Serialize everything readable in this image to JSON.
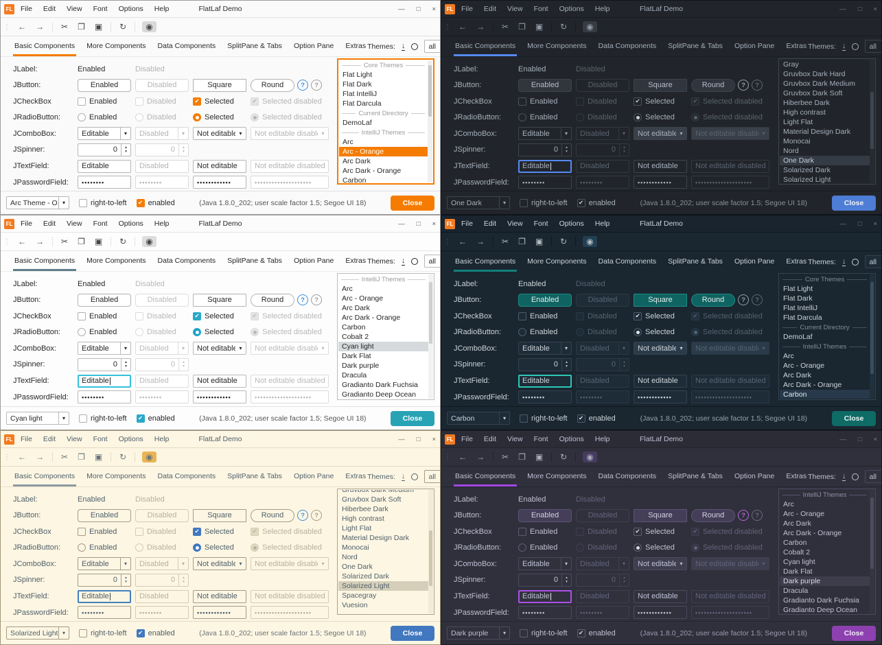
{
  "shared": {
    "window_title": "FlatLaf Demo",
    "menus": [
      "File",
      "Edit",
      "View",
      "Font",
      "Options",
      "Help"
    ],
    "window_controls": [
      {
        "name": "minimize",
        "glyph": "—"
      },
      {
        "name": "maximize",
        "glyph": "□"
      },
      {
        "name": "close",
        "glyph": "×"
      }
    ],
    "toolbar": [
      {
        "type": "btn",
        "name": "back",
        "glyph": "←"
      },
      {
        "type": "btn",
        "name": "forward",
        "glyph": "→"
      },
      {
        "type": "sep"
      },
      {
        "type": "btn",
        "name": "cut",
        "glyph": "✂"
      },
      {
        "type": "btn",
        "name": "copy",
        "glyph": "❐"
      },
      {
        "type": "btn",
        "name": "paste",
        "glyph": "▣"
      },
      {
        "type": "sep"
      },
      {
        "type": "btn",
        "name": "refresh",
        "glyph": "↻"
      },
      {
        "type": "sep"
      },
      {
        "type": "btn",
        "name": "show-hidden-eye",
        "glyph": "◉",
        "toggled": true
      }
    ],
    "tabs": [
      "Basic Components",
      "More Components",
      "Data Components",
      "SplitPane & Tabs",
      "Option Pane",
      "Extras"
    ],
    "themes_label": "Themes:",
    "filter_value": "all",
    "icons": {
      "check": "✔",
      "combo_arrow": "▾",
      "spin_up": "▴",
      "spin_down": "▾",
      "download": "↓"
    },
    "form": {
      "labels": {
        "jlabel": "JLabel:",
        "jbutton": "JButton:",
        "jcheckbox": "JCheckBox",
        "jradiobutton": "JRadioButton:",
        "jcombobox": "JComboBox:",
        "jspinner": "JSpinner:",
        "jtextfield": "JTextField:",
        "jpasswordfield": "JPasswordField:"
      },
      "jlabel": {
        "enabled": "Enabled",
        "disabled": "Disabled"
      },
      "jbutton": {
        "enabled": "Enabled",
        "disabled": "Disabled",
        "square": "Square",
        "round": "Round",
        "help": "?"
      },
      "jcheckbox": {
        "enabled": "Enabled",
        "disabled": "Disabled",
        "selected": "Selected",
        "selected_disabled": "Selected disabled"
      },
      "jradiobutton": {
        "enabled": "Enabled",
        "disabled": "Disabled",
        "selected": "Selected",
        "selected_disabled": "Selected disabled"
      },
      "jcombobox": {
        "editable": "Editable",
        "disabled": "Disabled",
        "not_editable": "Not editable",
        "not_editable_disabled": "Not editable disabled"
      },
      "jspinner": {
        "value": "0",
        "value_disabled": "0"
      },
      "jtextfield": {
        "editable": "Editable",
        "disabled": "Disabled",
        "not_editable": "Not editable",
        "not_editable_disabled": "Not editable disabled"
      },
      "jpasswordfield": {
        "v1": "••••••••",
        "v2": "••••••••",
        "v3": "••••••••••••",
        "v4": "••••••••••••••••••••"
      }
    },
    "bottom": {
      "rtl_label": "right-to-left",
      "enabled_label": "enabled",
      "info": "(Java 1.8.0_202;  user scale factor 1.5; Segoe UI 18)",
      "close_label": "Close"
    }
  },
  "panels": [
    {
      "theme_name": "Arc - Orange",
      "selector_value": "Arc Theme - O...",
      "state": {
        "textfield_focused": false,
        "caret": false,
        "list_focused": true,
        "scroll_top": "4%",
        "scroll_height": "42%"
      },
      "colors": {
        "frame": "#9d9d9d",
        "titlebar": "#fafafa",
        "bg": "#fafafa",
        "text": "#2b2b2b",
        "muted": "#b4b4b4",
        "toolbar_border": "#e2e2e2",
        "tabs_border": "#e8e8e8",
        "eye_bg": "#d4d4d4",
        "winbtn": "#555555",
        "accent": "#f57c00",
        "tab_underline": "#f57c00",
        "btn_bg": "#ffffff",
        "btn_border": "#b0b0b0",
        "btn_text": "#2b2b2b",
        "field_bg": "#ffffff",
        "field_border": "#b6b6b6",
        "field_border_dis": "#dadada",
        "ne_bg": "#ffffff",
        "check_fill": "#f57c00",
        "check_border": "#f57c00",
        "check_mark": "#ffffff",
        "box_border": "#b0b0b0",
        "dis_fill": "#e4e4e4",
        "radio_fill": "#f57c00",
        "radio_dot": "#ffffff",
        "focus": "#f57c00",
        "caret": "#333333",
        "list_bg": "#ffffff",
        "list_border": "#f57c00",
        "sel_bg": "#f57c00",
        "sel_text": "#ffffff",
        "sep_text": "#9b9b9b",
        "sep_line": "#c9c9c9",
        "close_bg": "#f57c00",
        "close_text": "#ffffff",
        "help1": "#3c8fd9",
        "help2": "#9e9e9e",
        "scroll_track": "#f0f0f0",
        "scroll_thumb": "#c8c8c8",
        "info_text": "#555555"
      },
      "themes_list": [
        {
          "type": "separator",
          "label": "Core Themes"
        },
        {
          "type": "item",
          "label": "Flat Light"
        },
        {
          "type": "item",
          "label": "Flat Dark"
        },
        {
          "type": "item",
          "label": "Flat IntelliJ"
        },
        {
          "type": "item",
          "label": "Flat Darcula"
        },
        {
          "type": "separator",
          "label": "Current Directory"
        },
        {
          "type": "item",
          "label": "DemoLaf"
        },
        {
          "type": "separator",
          "label": "IntelliJ Themes"
        },
        {
          "type": "item",
          "label": "Arc"
        },
        {
          "type": "item",
          "label": "Arc - Orange",
          "selected": true
        },
        {
          "type": "item",
          "label": "Arc Dark"
        },
        {
          "type": "item",
          "label": "Arc Dark - Orange"
        },
        {
          "type": "item",
          "label": "Carbon"
        }
      ]
    },
    {
      "theme_name": "One Dark",
      "selector_value": "One Dark",
      "state": {
        "textfield_focused": true,
        "caret": true,
        "list_focused": false,
        "scroll_top": "26%",
        "scroll_height": "46%"
      },
      "colors": {
        "frame": "#11141a",
        "titlebar": "#21252b",
        "bg": "#21252b",
        "text": "#a6aeba",
        "muted": "#5a626e",
        "toolbar_border": "#181b20",
        "tabs_border": "#1a1e25",
        "eye_bg": "#3b4048",
        "winbtn": "#707885",
        "accent": "#568af2",
        "tab_underline": "#568af2",
        "btn_bg": "#30353e",
        "btn_border": "#3d434e",
        "btn_text": "#b6bdc9",
        "field_bg": "#21252b",
        "field_border": "#3d434e",
        "field_border_dis": "#32383f",
        "ne_bg": "#3a4049",
        "check_fill": "#21252b",
        "check_border": "#4b5260",
        "check_mark": "#c9cfd8",
        "box_border": "#4b5260",
        "dis_fill": "#262b31",
        "radio_fill": "#21252b",
        "radio_dot": "#c9cfd8",
        "focus": "#568af2",
        "caret": "#dcdfe4",
        "list_bg": "#21252b",
        "list_border": "#3d434e",
        "sel_bg": "#353b45",
        "sel_text": "#c8cdd5",
        "sep_text": "#7a828e",
        "sep_line": "#4a515c",
        "close_bg": "#4d7dd6",
        "close_text": "#f0f2f5",
        "help1": "#9aa2ad",
        "help2": "#5f6773",
        "scroll_track": "#262b32",
        "scroll_thumb": "#3f4550",
        "info_text": "#8a919c"
      },
      "themes_list": [
        {
          "type": "item",
          "label": "Gray"
        },
        {
          "type": "item",
          "label": "Gruvbox Dark Hard"
        },
        {
          "type": "item",
          "label": "Gruvbox Dark Medium"
        },
        {
          "type": "item",
          "label": "Gruvbox Dark Soft"
        },
        {
          "type": "item",
          "label": "Hiberbee Dark"
        },
        {
          "type": "item",
          "label": "High contrast"
        },
        {
          "type": "item",
          "label": "Light Flat"
        },
        {
          "type": "item",
          "label": "Material Design Dark"
        },
        {
          "type": "item",
          "label": "Monocai"
        },
        {
          "type": "item",
          "label": "Nord"
        },
        {
          "type": "item",
          "label": "One Dark",
          "selected": true
        },
        {
          "type": "item",
          "label": "Solarized Dark"
        },
        {
          "type": "item",
          "label": "Solarized Light"
        }
      ]
    },
    {
      "theme_name": "Cyan light",
      "selector_value": "Cyan light",
      "state": {
        "textfield_focused": true,
        "caret": true,
        "list_focused": false,
        "scroll_top": "6%",
        "scroll_height": "50%"
      },
      "colors": {
        "frame": "#9d9d9d",
        "titlebar": "#fcfcfc",
        "bg": "#fdfdfd",
        "text": "#262626",
        "muted": "#b9b9b9",
        "toolbar_border": "#e4e4e4",
        "tabs_border": "#ececec",
        "eye_bg": "#d8d8d8",
        "winbtn": "#555555",
        "accent": "#1fa7c4",
        "tab_underline": "#5f7d89",
        "btn_bg": "#ffffff",
        "btn_border": "#b4b4b4",
        "btn_text": "#262626",
        "field_bg": "#ffffff",
        "field_border": "#b9b9b9",
        "field_border_dis": "#dcdcdc",
        "ne_bg": "#ffffff",
        "check_fill": "#29a8ca",
        "check_border": "#29a8ca",
        "check_mark": "#ffffff",
        "box_border": "#b0b0b0",
        "dis_fill": "#e4e4e4",
        "radio_fill": "#19a3c9",
        "radio_dot": "#ffffff",
        "focus": "#35c1dc",
        "caret": "#222222",
        "list_bg": "#ffffff",
        "list_border": "#bcbcbc",
        "sel_bg": "#d7dadc",
        "sel_text": "#222222",
        "sep_text": "#9b9b9b",
        "sep_line": "#cfcfcf",
        "close_bg": "#28a3b5",
        "close_text": "#ffffff",
        "help1": "#3c8fd9",
        "help2": "#9e9e9e",
        "scroll_track": "#f2f2f2",
        "scroll_thumb": "#cfcfcf",
        "info_text": "#555555"
      },
      "themes_list": [
        {
          "type": "separator",
          "label": "IntelliJ Themes"
        },
        {
          "type": "item",
          "label": "Arc"
        },
        {
          "type": "item",
          "label": "Arc - Orange"
        },
        {
          "type": "item",
          "label": "Arc Dark"
        },
        {
          "type": "item",
          "label": "Arc Dark - Orange"
        },
        {
          "type": "item",
          "label": "Carbon"
        },
        {
          "type": "item",
          "label": "Cobalt 2"
        },
        {
          "type": "item",
          "label": "Cyan light",
          "selected": true
        },
        {
          "type": "item",
          "label": "Dark Flat"
        },
        {
          "type": "item",
          "label": "Dark purple"
        },
        {
          "type": "item",
          "label": "Dracula"
        },
        {
          "type": "item",
          "label": "Gradianto Dark Fuchsia"
        },
        {
          "type": "item",
          "label": "Gradianto Deep Ocean"
        }
      ]
    },
    {
      "theme_name": "Carbon",
      "selector_value": "Carbon",
      "state": {
        "textfield_focused": true,
        "caret": false,
        "list_focused": false,
        "scroll_top": "6%",
        "scroll_height": "74%"
      },
      "colors": {
        "frame": "#0c1218",
        "titlebar": "#19242e",
        "bg": "#1a2630",
        "text": "#ccd4d9",
        "muted": "#546470",
        "toolbar_border": "#101920",
        "tabs_border": "#11ial1b24",
        "eye_bg": "#24455a",
        "winbtn": "#6f8290",
        "accent": "#18a099",
        "tab_underline": "#128079",
        "btn_bg": "#0f6360",
        "btn_border": "#1d8d85",
        "btn_text": "#e6eef0",
        "field_bg": "#1e2c38",
        "field_border": "#33434f",
        "field_border_dis": "#2a3944",
        "ne_bg": "#2b3b49",
        "check_fill": "#1e2c38",
        "check_border": "#4d5d6b",
        "check_mark": "#dfe7eb",
        "box_border": "#4d5d6b",
        "dis_fill": "#22313d",
        "radio_fill": "#1e2c38",
        "radio_dot": "#dfe7eb",
        "focus": "#2ec7b6",
        "caret": "#e8f0f2",
        "list_bg": "#1a2630",
        "list_border": "#33434f",
        "sel_bg": "#27394a",
        "sel_text": "#dfe7eb",
        "sep_text": "#7e8f9b",
        "sep_line": "#42525f",
        "close_bg": "#0e6b66",
        "close_text": "#eef5f5",
        "help1": "#8fa2ad",
        "help2": "#5a6a76",
        "scroll_track": "#20303c",
        "scroll_thumb": "#3a4d5c",
        "info_text": "#93a3ad"
      },
      "themes_list": [
        {
          "type": "separator",
          "label": "Core Themes"
        },
        {
          "type": "item",
          "label": "Flat Light"
        },
        {
          "type": "item",
          "label": "Flat Dark"
        },
        {
          "type": "item",
          "label": "Flat IntelliJ"
        },
        {
          "type": "item",
          "label": "Flat Darcula"
        },
        {
          "type": "separator",
          "label": "Current Directory"
        },
        {
          "type": "item",
          "label": "DemoLaf"
        },
        {
          "type": "separator",
          "label": "IntelliJ Themes"
        },
        {
          "type": "item",
          "label": "Arc"
        },
        {
          "type": "item",
          "label": "Arc - Orange"
        },
        {
          "type": "item",
          "label": "Arc Dark"
        },
        {
          "type": "item",
          "label": "Arc Dark - Orange"
        },
        {
          "type": "item",
          "label": "Carbon",
          "selected": true
        }
      ]
    },
    {
      "theme_name": "Solarized Light",
      "selector_value": "Solarized Light",
      "state": {
        "textfield_focused": true,
        "caret": true,
        "list_focused": false,
        "scroll_top": "33%",
        "scroll_height": "45%",
        "clip_first": true
      },
      "colors": {
        "frame": "#a09878",
        "titlebar": "#fdf6e3",
        "bg": "#fdf6e3",
        "text": "#50606a",
        "muted": "#b9b19b",
        "toolbar_border": "#e4dcc6",
        "tabs_border": "#eae2cc",
        "eye_bg": "#e7a93e",
        "winbtn": "#6a6a5a",
        "accent": "#4480c0",
        "tab_underline": "#8a9aa0",
        "btn_bg": "#fdf6e3",
        "btn_border": "#a49c84",
        "btn_text": "#50606a",
        "field_bg": "#fdf6e3",
        "field_border": "#a49c84",
        "field_border_dis": "#d4ccb4",
        "ne_bg": "#fdf6e3",
        "check_fill": "#4178bf",
        "check_border": "#4178bf",
        "check_mark": "#ffffff",
        "box_border": "#a49c84",
        "dis_fill": "#e0d8c0",
        "radio_fill": "#4178bf",
        "radio_dot": "#ffffff",
        "focus": "#4480c0",
        "caret": "#444444",
        "list_bg": "#fdf6e3",
        "list_border": "#aaa28a",
        "sel_bg": "#d5cfba",
        "sel_text": "#50606a",
        "sep_text": "#a49c84",
        "sep_line": "#c4bca4",
        "close_bg": "#4178bf",
        "close_text": "#ffffff",
        "help1": "#3c8fd9",
        "help2": "#a49c84",
        "scroll_track": "#f2ebd8",
        "scroll_thumb": "#cfc7ae",
        "info_text": "#6a7178"
      },
      "themes_list": [
        {
          "type": "item",
          "label": "Gruvbox Dark Medium"
        },
        {
          "type": "item",
          "label": "Gruvbox Dark Soft"
        },
        {
          "type": "item",
          "label": "Hiberbee Dark"
        },
        {
          "type": "item",
          "label": "High contrast"
        },
        {
          "type": "item",
          "label": "Light Flat"
        },
        {
          "type": "item",
          "label": "Material Design Dark"
        },
        {
          "type": "item",
          "label": "Monocai"
        },
        {
          "type": "item",
          "label": "Nord"
        },
        {
          "type": "item",
          "label": "One Dark"
        },
        {
          "type": "item",
          "label": "Solarized Dark"
        },
        {
          "type": "item",
          "label": "Solarized Light",
          "selected": true
        },
        {
          "type": "item",
          "label": "Spacegray"
        },
        {
          "type": "item",
          "label": "Vuesion"
        }
      ]
    },
    {
      "theme_name": "Dark purple",
      "selector_value": "Dark purple",
      "state": {
        "textfield_focused": true,
        "caret": true,
        "list_focused": false,
        "scroll_top": "6%",
        "scroll_height": "58%"
      },
      "colors": {
        "frame": "#1c1c24",
        "titlebar": "#2c2c37",
        "bg": "#30303c",
        "text": "#bfc0d2",
        "muted": "#62637a",
        "toolbar_border": "#23232c",
        "tabs_border": "#242430",
        "eye_bg": "#493f66",
        "winbtn": "#787890",
        "accent": "#a64ddb",
        "tab_underline": "#a347e0",
        "btn_bg": "#443e58",
        "btn_border": "#5d5476",
        "btn_text": "#d4d2e4",
        "field_bg": "#31313e",
        "field_border": "#4a4a5e",
        "field_border_dis": "#3e3e4e",
        "ne_bg": "#3e3e4f",
        "check_fill": "#31313e",
        "check_border": "#5e5e74",
        "check_mark": "#d9d9e8",
        "box_border": "#5e5e74",
        "dis_fill": "#363644",
        "radio_fill": "#31313e",
        "radio_dot": "#d9d9e8",
        "focus": "#ab50e8",
        "caret": "#e6e6f2",
        "list_bg": "#30303c",
        "list_border": "#4a4a5e",
        "sel_bg": "#3d3d4c",
        "sel_text": "#d9d9e8",
        "sep_text": "#8e8ea8",
        "sep_line": "#55556a",
        "close_bg": "#8d41b0",
        "close_text": "#f2eaf8",
        "help1": "#b06ad8",
        "help2": "#6a6a80",
        "scroll_track": "#353541",
        "scroll_thumb": "#4c4c5e",
        "info_text": "#9a9ab0"
      },
      "themes_list": [
        {
          "type": "separator",
          "label": "IntelliJ Themes"
        },
        {
          "type": "item",
          "label": "Arc"
        },
        {
          "type": "item",
          "label": "Arc - Orange"
        },
        {
          "type": "item",
          "label": "Arc Dark"
        },
        {
          "type": "item",
          "label": "Arc Dark - Orange"
        },
        {
          "type": "item",
          "label": "Carbon"
        },
        {
          "type": "item",
          "label": "Cobalt 2"
        },
        {
          "type": "item",
          "label": "Cyan light"
        },
        {
          "type": "item",
          "label": "Dark Flat"
        },
        {
          "type": "item",
          "label": "Dark purple",
          "selected": true
        },
        {
          "type": "item",
          "label": "Dracula"
        },
        {
          "type": "item",
          "label": "Gradianto Dark Fuchsia"
        },
        {
          "type": "item",
          "label": "Gradianto Deep Ocean"
        }
      ]
    }
  ]
}
